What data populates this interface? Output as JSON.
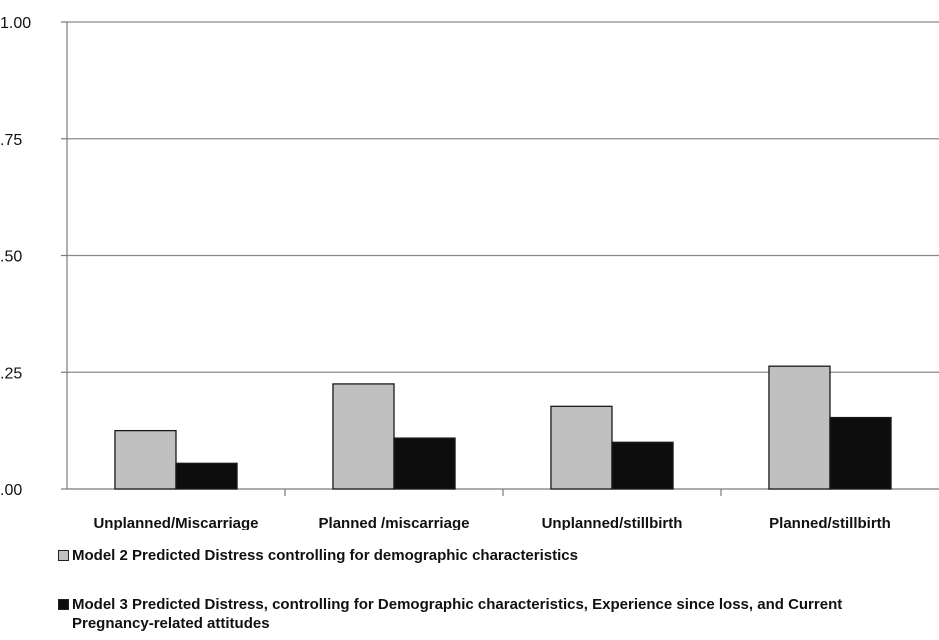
{
  "colors": {
    "model2": "#c0c0c0",
    "model3": "#0d0d0d",
    "axis": "#7a7a7a",
    "grid": "#8a8a8a"
  },
  "legend": {
    "model2": "Model 2 Predicted Distress controlling for demographic characteristics",
    "model3": "Model 3 Predicted Distress, controlling for Demographic characteristics, Experience since loss, and Current Pregnancy-related attitudes"
  },
  "chart_data": {
    "type": "bar",
    "categories": [
      "Unplanned/Miscarriage",
      "Planned /miscarriage",
      "Unplanned/stillbirth",
      "Planned/stillbirth"
    ],
    "series": [
      {
        "name": "Model 2 Predicted Distress controlling for demographic characteristics",
        "values": [
          0.125,
          0.225,
          0.177,
          0.263
        ]
      },
      {
        "name": "Model 3 Predicted Distress, controlling for Demographic characteristics, Experience since loss, and Current Pregnancy-related attitudes",
        "values": [
          0.055,
          0.109,
          0.1,
          0.153
        ]
      }
    ],
    "yticks": [
      {
        "value": 0,
        "label": ".00"
      },
      {
        "value": 0.25,
        "label": ".25"
      },
      {
        "value": 0.5,
        "label": ".50"
      },
      {
        "value": 0.75,
        "label": ".75"
      },
      {
        "value": 1,
        "label": "1.00"
      }
    ],
    "ylim": [
      0,
      1
    ],
    "grid": true,
    "legend_position": "bottom",
    "xlabel": "",
    "ylabel": "",
    "title": ""
  }
}
